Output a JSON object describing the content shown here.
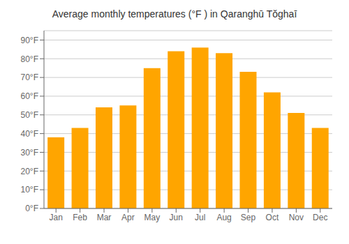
{
  "chart_data": {
    "type": "bar",
    "title": "Average monthly temperatures (°F ) in Qaranghū Tŏghaī",
    "categories": [
      "Jan",
      "Feb",
      "Mar",
      "Apr",
      "May",
      "Jun",
      "Jul",
      "Aug",
      "Sep",
      "Oct",
      "Nov",
      "Dec"
    ],
    "values": [
      38,
      43,
      54,
      55,
      75,
      84,
      86,
      83,
      73,
      62,
      51,
      43
    ],
    "color": "#FFA500",
    "ylim": [
      0,
      95
    ],
    "yticks": [
      {
        "value": 0,
        "label": "0°F"
      },
      {
        "value": 10,
        "label": "10°F"
      },
      {
        "value": 20,
        "label": "20°F"
      },
      {
        "value": 30,
        "label": "30°F"
      },
      {
        "value": 40,
        "label": "40°F"
      },
      {
        "value": 50,
        "label": "50°F"
      },
      {
        "value": 60,
        "label": "60°F"
      },
      {
        "value": 70,
        "label": "70°F"
      },
      {
        "value": 80,
        "label": "80°F"
      },
      {
        "value": 90,
        "label": "90°F"
      }
    ],
    "grid": true
  }
}
